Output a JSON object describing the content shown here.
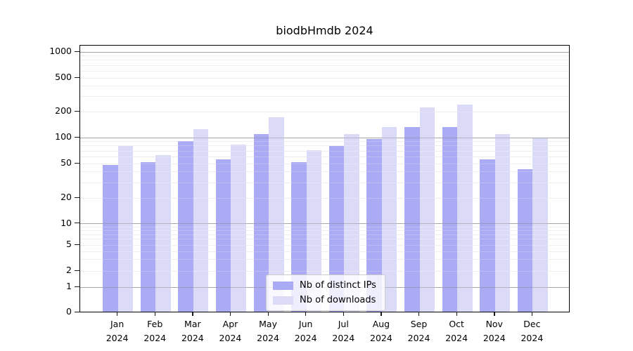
{
  "chart_data": {
    "type": "bar",
    "title": "biodbHmdb 2024",
    "categories": [
      "Jan 2024",
      "Feb 2024",
      "Mar 2024",
      "Apr 2024",
      "May 2024",
      "Jun 2024",
      "Jul 2024",
      "Aug 2024",
      "Sep 2024",
      "Oct 2024",
      "Nov 2024",
      "Dec 2024"
    ],
    "series": [
      {
        "name": "Nb of distinct IPs",
        "color": "#aaaaf5",
        "values": [
          47,
          51,
          90,
          55,
          107,
          51,
          78,
          95,
          130,
          130,
          55,
          42
        ]
      },
      {
        "name": "Nb of downloads",
        "color": "#dbdbf8",
        "values": [
          79,
          61,
          123,
          82,
          170,
          70,
          108,
          130,
          220,
          238,
          108,
          96
        ]
      }
    ],
    "xlabel": "",
    "ylabel": "",
    "yticks": [
      0,
      1,
      2,
      5,
      10,
      20,
      50,
      100,
      200,
      500,
      1000
    ],
    "ylim": [
      0,
      1200
    ],
    "scale": "log-like, compressed below 10, linear below 1",
    "grid": "horizontal major and minor gridlines, drawn over bars",
    "legend_position": "inside lower center",
    "bar_layout": "grouped pair per month, dark left, light right"
  }
}
